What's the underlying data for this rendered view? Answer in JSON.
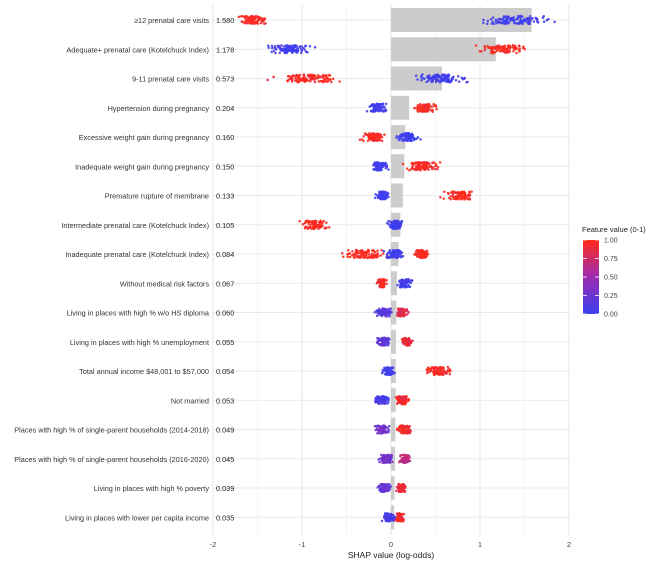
{
  "chart_data": {
    "type": "scatter",
    "subtype": "shap-beeswarm",
    "xlabel": "SHAP value (log-odds)",
    "xlim": [
      -2,
      2
    ],
    "xticks": [
      -2,
      -1,
      0,
      1,
      2
    ],
    "grid": true,
    "legend": {
      "title": "Feature value (0-1)",
      "placement": "right",
      "ticks": [
        1.0,
        0.75,
        0.5,
        0.25,
        0.0
      ],
      "tick_labels": [
        "1.00",
        "0.75",
        "0.50",
        "0.25",
        "0.00"
      ],
      "colors": {
        "low": "#3a3ff0",
        "mid": "#9c2ab0",
        "high": "#ff2a1a"
      }
    },
    "bar_color": "#cccccc",
    "features": [
      {
        "name": "≥12 prenatal care visits",
        "importance": 1.58,
        "importance_label": "1.580",
        "clusters": [
          {
            "center": -1.55,
            "spread": 0.25,
            "value": 1.0
          },
          {
            "center": 1.4,
            "spread": 0.55,
            "value": 0.0
          }
        ]
      },
      {
        "name": "Adequate+ prenatal care (Kotelchuck Index)",
        "importance": 1.178,
        "importance_label": "1.178",
        "clusters": [
          {
            "center": -1.15,
            "spread": 0.4,
            "value": 0.0
          },
          {
            "center": 1.25,
            "spread": 0.4,
            "value": 1.0
          }
        ]
      },
      {
        "name": "9-11 prenatal care visits",
        "importance": 0.573,
        "importance_label": "0.573",
        "clusters": [
          {
            "center": -0.95,
            "spread": 0.55,
            "value": 1.0
          },
          {
            "center": 0.55,
            "spread": 0.5,
            "value": 0.0
          }
        ]
      },
      {
        "name": "Hypertension during pregnancy",
        "importance": 0.204,
        "importance_label": "0.204",
        "clusters": [
          {
            "center": -0.15,
            "spread": 0.17,
            "value": 0.0
          },
          {
            "center": 0.38,
            "spread": 0.2,
            "value": 1.0
          }
        ]
      },
      {
        "name": "Excessive weight gain during pregnancy",
        "importance": 0.16,
        "importance_label": "0.160",
        "clusters": [
          {
            "center": -0.2,
            "spread": 0.18,
            "value": 1.0
          },
          {
            "center": 0.18,
            "spread": 0.18,
            "value": 0.0
          }
        ]
      },
      {
        "name": "Inadequate weight gain during pregnancy",
        "importance": 0.15,
        "importance_label": "0.150",
        "clusters": [
          {
            "center": -0.12,
            "spread": 0.15,
            "value": 0.0
          },
          {
            "center": 0.35,
            "spread": 0.27,
            "value": 1.0
          }
        ]
      },
      {
        "name": "Premature rupture of membrane",
        "importance": 0.133,
        "importance_label": "0.133",
        "clusters": [
          {
            "center": -0.1,
            "spread": 0.12,
            "value": 0.0
          },
          {
            "center": 0.77,
            "spread": 0.25,
            "value": 1.0
          }
        ]
      },
      {
        "name": "Intermediate prenatal care (Kotelchuck Index)",
        "importance": 0.105,
        "importance_label": "0.105",
        "clusters": [
          {
            "center": -0.85,
            "spread": 0.23,
            "value": 1.0
          },
          {
            "center": 0.05,
            "spread": 0.13,
            "value": 0.0
          }
        ]
      },
      {
        "name": "Inadequate prenatal care (Kotelchuck Index)",
        "importance": 0.084,
        "importance_label": "0.084",
        "clusters": [
          {
            "center": -0.3,
            "spread": 0.38,
            "value": 1.0
          },
          {
            "center": 0.05,
            "spread": 0.16,
            "value": 0.0
          },
          {
            "center": 0.35,
            "spread": 0.12,
            "value": 1.0
          }
        ]
      },
      {
        "name": "Without medical risk factors",
        "importance": 0.067,
        "importance_label": "0.067",
        "clusters": [
          {
            "center": -0.1,
            "spread": 0.09,
            "value": 1.0
          },
          {
            "center": 0.15,
            "spread": 0.14,
            "value": 0.0
          }
        ]
      },
      {
        "name": "Living in places with high % w/o HS diploma",
        "importance": 0.06,
        "importance_label": "0.060",
        "clusters": [
          {
            "center": -0.08,
            "spread": 0.13,
            "value": 0.15
          },
          {
            "center": 0.12,
            "spread": 0.1,
            "value": 0.85
          }
        ]
      },
      {
        "name": "Living in places with high % unemployment",
        "importance": 0.055,
        "importance_label": "0.055",
        "clusters": [
          {
            "center": -0.08,
            "spread": 0.13,
            "value": 0.2
          },
          {
            "center": 0.18,
            "spread": 0.1,
            "value": 0.9
          }
        ]
      },
      {
        "name": "Total annual income $48,001 to $57,000",
        "importance": 0.054,
        "importance_label": "0.054",
        "clusters": [
          {
            "center": -0.03,
            "spread": 0.1,
            "value": 0.0
          },
          {
            "center": 0.52,
            "spread": 0.22,
            "value": 1.0
          }
        ]
      },
      {
        "name": "Not married",
        "importance": 0.053,
        "importance_label": "0.053",
        "clusters": [
          {
            "center": -0.1,
            "spread": 0.14,
            "value": 0.05
          },
          {
            "center": 0.13,
            "spread": 0.12,
            "value": 0.95
          }
        ]
      },
      {
        "name": "Places with high % of single-parent households (2014-2018)",
        "importance": 0.049,
        "importance_label": "0.049",
        "clusters": [
          {
            "center": -0.1,
            "spread": 0.12,
            "value": 0.3
          },
          {
            "center": 0.15,
            "spread": 0.12,
            "value": 0.95
          }
        ]
      },
      {
        "name": "Places with high % of single-parent households (2016-2020)",
        "importance": 0.045,
        "importance_label": "0.045",
        "clusters": [
          {
            "center": -0.05,
            "spread": 0.12,
            "value": 0.3
          },
          {
            "center": 0.15,
            "spread": 0.1,
            "value": 0.7
          }
        ]
      },
      {
        "name": "Living in places with high % poverty",
        "importance": 0.039,
        "importance_label": "0.039",
        "clusters": [
          {
            "center": -0.07,
            "spread": 0.11,
            "value": 0.2
          },
          {
            "center": 0.12,
            "spread": 0.08,
            "value": 0.9
          }
        ]
      },
      {
        "name": "Living in places with lower per capita income",
        "importance": 0.035,
        "importance_label": "0.035",
        "clusters": [
          {
            "center": -0.02,
            "spread": 0.1,
            "value": 0.05
          },
          {
            "center": 0.1,
            "spread": 0.08,
            "value": 0.95
          }
        ]
      }
    ]
  }
}
